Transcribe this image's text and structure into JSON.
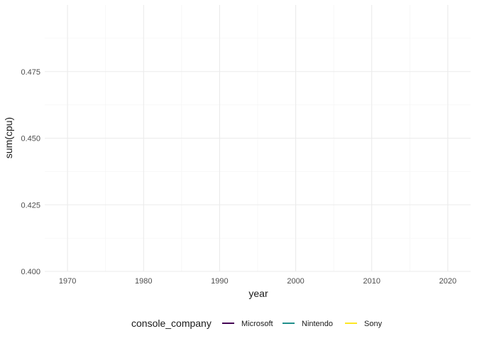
{
  "chart_data": {
    "type": "line",
    "title": "",
    "xlabel": "year",
    "ylabel": "sum(cpu)",
    "xlim": [
      1967,
      2023
    ],
    "ylim": [
      0.4,
      0.5
    ],
    "x_ticks": [
      "1970",
      "1980",
      "1990",
      "2000",
      "2010",
      "2020"
    ],
    "y_ticks": [
      "0.400",
      "0.425",
      "0.450",
      "0.475"
    ],
    "grid": true,
    "legend_position": "bottom",
    "legend_title": "console_company",
    "series": [
      {
        "name": "Microsoft",
        "color": "#440154",
        "values": []
      },
      {
        "name": "Nintendo",
        "color": "#21908C",
        "values": []
      },
      {
        "name": "Sony",
        "color": "#FDE725",
        "values": []
      }
    ]
  }
}
